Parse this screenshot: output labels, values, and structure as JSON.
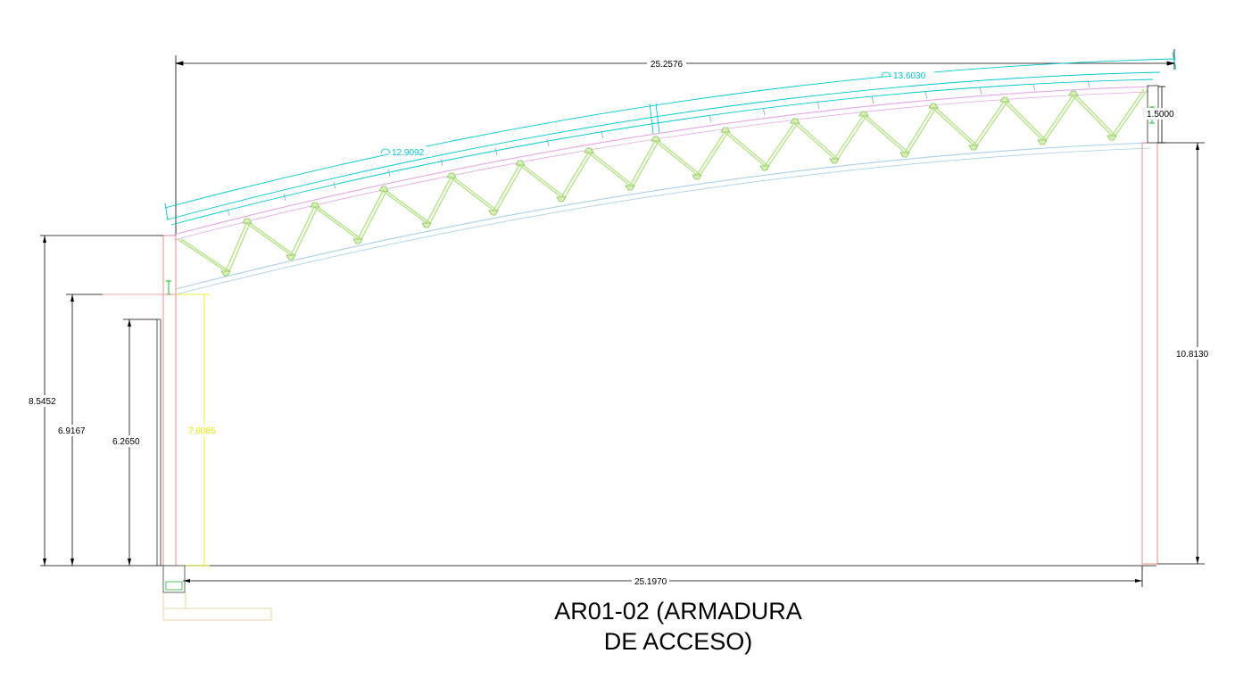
{
  "title": {
    "line1": "AR01-02 (ARMADURA",
    "line2": "DE ACCESO)"
  },
  "dimensions": {
    "top_span": "25.2576",
    "bottom_span": "25.1970",
    "arc_left": "12.9092",
    "arc_right": "13.6030",
    "right_depth": "1.5000",
    "right_height": "10.8130",
    "left_height_outer": "8.5452",
    "left_height_mid": "6.9167",
    "left_height_inner": "6.2650",
    "left_column_height": "7.6085"
  },
  "colors": {
    "cover": "#00c8d0",
    "top_chord": "#e5a8e5",
    "bottom_chord": "#a9cfe9",
    "web": "#b6e28a",
    "column": "#e88c8c",
    "dimension": "#000000",
    "highlight_dim": "#e8e800"
  }
}
